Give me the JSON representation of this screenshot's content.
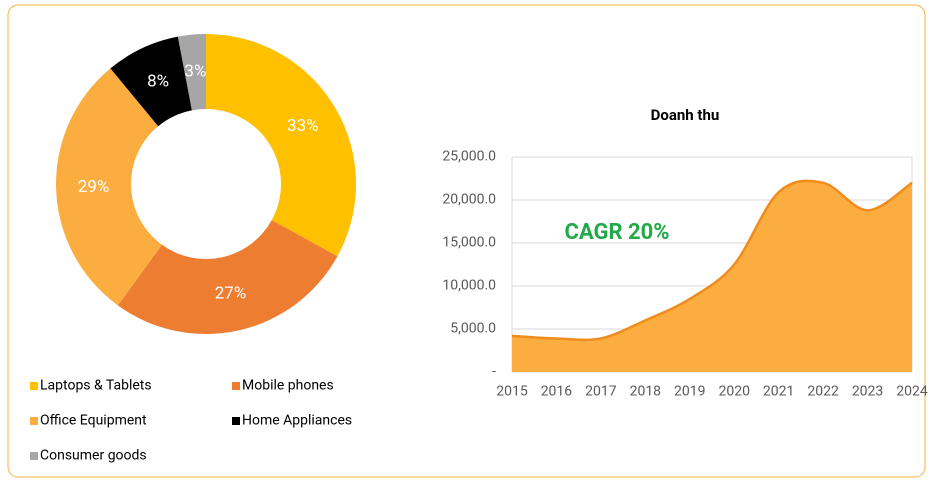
{
  "chart_data": [
    {
      "type": "pie",
      "donut": true,
      "categories": [
        "Laptops & Tablets",
        "Mobile phones",
        "Office Equipment",
        "Home Appliances",
        "Consumer goods"
      ],
      "values": [
        33,
        27,
        29,
        8,
        3
      ],
      "value_labels": [
        "33%",
        "27%",
        "29%",
        "8%",
        "3%"
      ],
      "colors": [
        "#FFC000",
        "#ED7D31",
        "#FBAE3F",
        "#000000",
        "#A6A6A6"
      ]
    },
    {
      "type": "area",
      "title": "Doanh thu",
      "categories": [
        "2015",
        "2016",
        "2017",
        "2018",
        "2019",
        "2020",
        "2021",
        "2022",
        "2023",
        "2024"
      ],
      "values": [
        4200,
        3900,
        3900,
        6000,
        8500,
        12500,
        20900,
        22000,
        18800,
        22000
      ],
      "color": "#FBAE3F",
      "line_color": "#F08C1E",
      "ylim": [
        0,
        25000
      ],
      "yticks": [
        {
          "value": 0,
          "label": "-"
        },
        {
          "value": 5000,
          "label": "5,000.0"
        },
        {
          "value": 10000,
          "label": "10,000.0"
        },
        {
          "value": 15000,
          "label": "15,000.0"
        },
        {
          "value": 20000,
          "label": "20,000.0"
        },
        {
          "value": 25000,
          "label": "25,000.0"
        }
      ],
      "grid": true,
      "annotation": "CAGR 20%"
    }
  ]
}
